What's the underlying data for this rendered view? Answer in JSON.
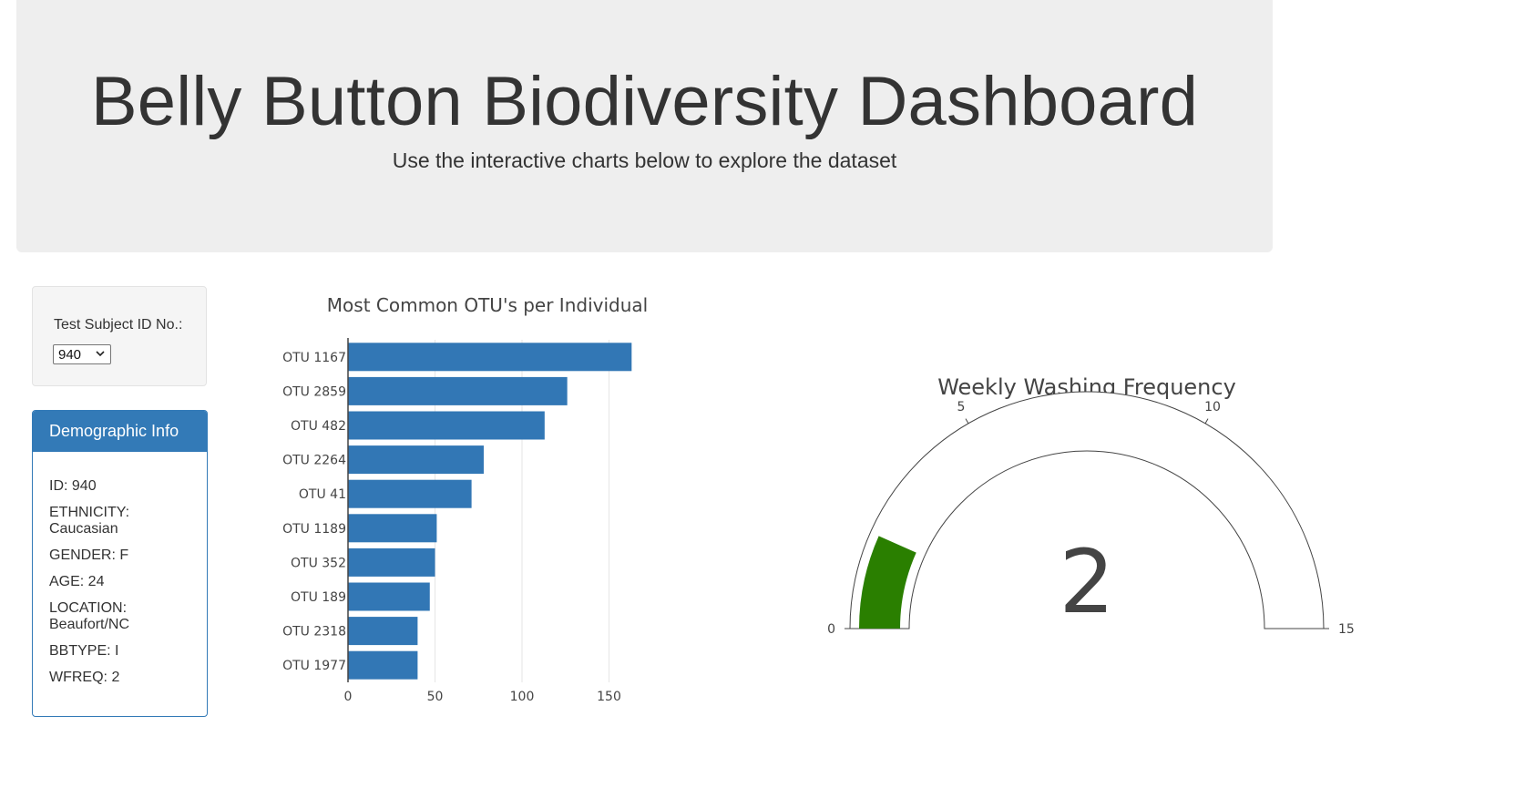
{
  "header": {
    "title": "Belly Button Biodiversity Dashboard",
    "subtitle": "Use the interactive charts below to explore the dataset"
  },
  "selector": {
    "label": "Test Subject ID No.:",
    "value": "940"
  },
  "demographics": {
    "heading": "Demographic Info",
    "items": [
      "ID: 940",
      "ETHNICITY: Caucasian",
      "GENDER: F",
      "AGE: 24",
      "LOCATION: Beaufort/NC",
      "BBTYPE: I",
      "WFREQ: 2"
    ]
  },
  "colors": {
    "bar": "#3277b5",
    "gauge_bar": "#2a7f00",
    "panel_primary": "#337ab7"
  },
  "chart_data": [
    {
      "type": "bar",
      "orientation": "horizontal",
      "title": "Most Common OTU's per Individual",
      "categories": [
        "OTU 1167",
        "OTU 2859",
        "OTU 482",
        "OTU 2264",
        "OTU 41",
        "OTU 1189",
        "OTU 352",
        "OTU 189",
        "OTU 2318",
        "OTU 1977"
      ],
      "values": [
        163,
        126,
        113,
        78,
        71,
        51,
        50,
        47,
        40,
        40
      ],
      "xlim": [
        0,
        165
      ],
      "xticks": [
        0,
        50,
        100,
        150
      ],
      "grid": true
    },
    {
      "type": "gauge",
      "title": "Weekly Washing Frequency",
      "value": 2,
      "range": [
        0,
        15
      ],
      "ticks": [
        0,
        5,
        10,
        15
      ]
    }
  ]
}
